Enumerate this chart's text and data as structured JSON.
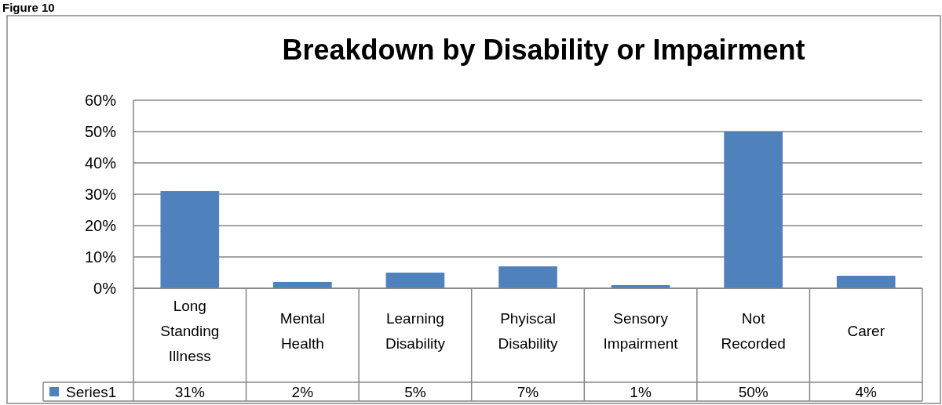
{
  "chart_data": {
    "type": "bar",
    "title": "Breakdown by Disability or Impairment",
    "annotations": [
      "Figure 10"
    ],
    "categories": [
      "Long Standing Illness",
      "Mental Health",
      "Learning Disability",
      "Phyiscal Disability",
      "Sensory Impairment",
      "Not Recorded",
      "Carer"
    ],
    "series": [
      {
        "name": "Series1",
        "color": "#4f81bd",
        "values": [
          31,
          2,
          5,
          7,
          1,
          50,
          4
        ],
        "value_labels": [
          "31%",
          "2%",
          "5%",
          "7%",
          "1%",
          "50%",
          "4%"
        ]
      }
    ],
    "ylim": [
      0,
      60
    ],
    "yticks": [
      {
        "value": 0,
        "label": "0%"
      },
      {
        "value": 10,
        "label": "10%"
      },
      {
        "value": 20,
        "label": "20%"
      },
      {
        "value": 30,
        "label": "30%"
      },
      {
        "value": 40,
        "label": "40%"
      },
      {
        "value": 50,
        "label": "50%"
      },
      {
        "value": 60,
        "label": "60%"
      }
    ],
    "grid": "y",
    "legend": "bottom"
  }
}
